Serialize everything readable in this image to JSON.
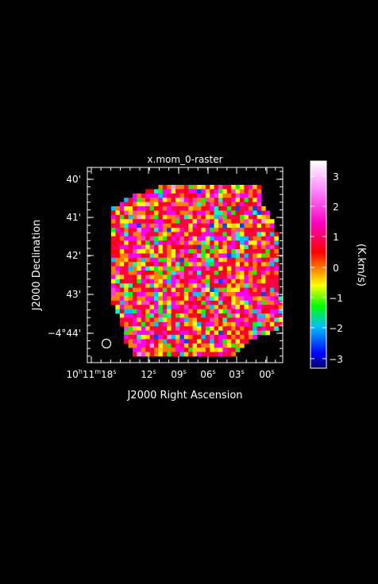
{
  "chart_data": {
    "type": "heatmap",
    "title": "x.mom_0-raster",
    "xlabel": "J2000 Right Ascension",
    "ylabel": "J2000 Declination",
    "colorbar_label": "(K.km/s)",
    "x_ticks": [
      {
        "h": "10",
        "m": "11",
        "s": "18",
        "full": true
      },
      {
        "s": "12"
      },
      {
        "s": "09"
      },
      {
        "s": "06"
      },
      {
        "s": "03"
      },
      {
        "s": "00"
      }
    ],
    "y_ticks": [
      "40'",
      "41'",
      "42'",
      "43'",
      "−4°44'"
    ],
    "colorbar_ticks": [
      "3",
      "2",
      "1",
      "0",
      "−1",
      "−2",
      "−3"
    ],
    "color_range": [
      -3.4,
      3.4
    ],
    "grid": false,
    "colors": {
      "background": "#000000",
      "frame": "#ffffff",
      "dominant": [
        "#ff0044",
        "#ff00ff",
        "#ff8000",
        "#ffff00",
        "#00ff00",
        "#00c0ff",
        "#0000ff"
      ]
    }
  }
}
